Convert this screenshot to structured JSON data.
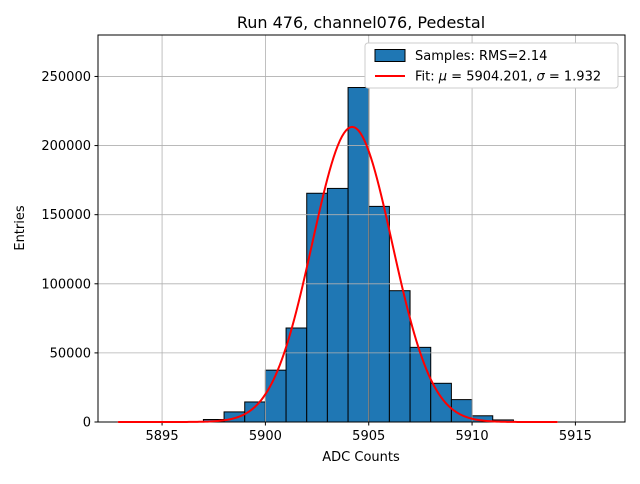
{
  "chart_data": {
    "type": "bar",
    "subtype": "histogram-with-gaussian-fit",
    "title": "Run 476, channel076, Pedestal",
    "xlabel": "ADC Counts",
    "ylabel": "Entries",
    "xlim": [
      5891.9,
      5917.4
    ],
    "ylim": [
      0,
      280000
    ],
    "xticks": [
      5895,
      5900,
      5905,
      5910,
      5915
    ],
    "yticks": [
      0,
      50000,
      100000,
      150000,
      200000,
      250000
    ],
    "grid": true,
    "grid_color": "#b0b0b0",
    "legend_position": "upper right",
    "histogram": {
      "legend_label": "Samples: RMS=2.14",
      "rms": 2.14,
      "bin_width": 1,
      "bin_left_edges": [
        5897,
        5898,
        5899,
        5900,
        5901,
        5902,
        5903,
        5904,
        5905,
        5906,
        5907,
        5908,
        5909,
        5910,
        5911
      ],
      "counts": [
        1800,
        7300,
        14500,
        37500,
        68000,
        165500,
        169000,
        242000,
        156000,
        95000,
        54000,
        28000,
        16200,
        4500,
        1500
      ],
      "fill_color": "#1f77b4",
      "edge_color": "#000000"
    },
    "fit": {
      "legend_label": "Fit: μ = 5904.201, σ = 1.932",
      "type": "gaussian",
      "mu": 5904.201,
      "sigma": 1.932,
      "amplitude": 213500,
      "x_range": [
        5892.9,
        5914.1
      ],
      "color": "#ff0000"
    }
  }
}
